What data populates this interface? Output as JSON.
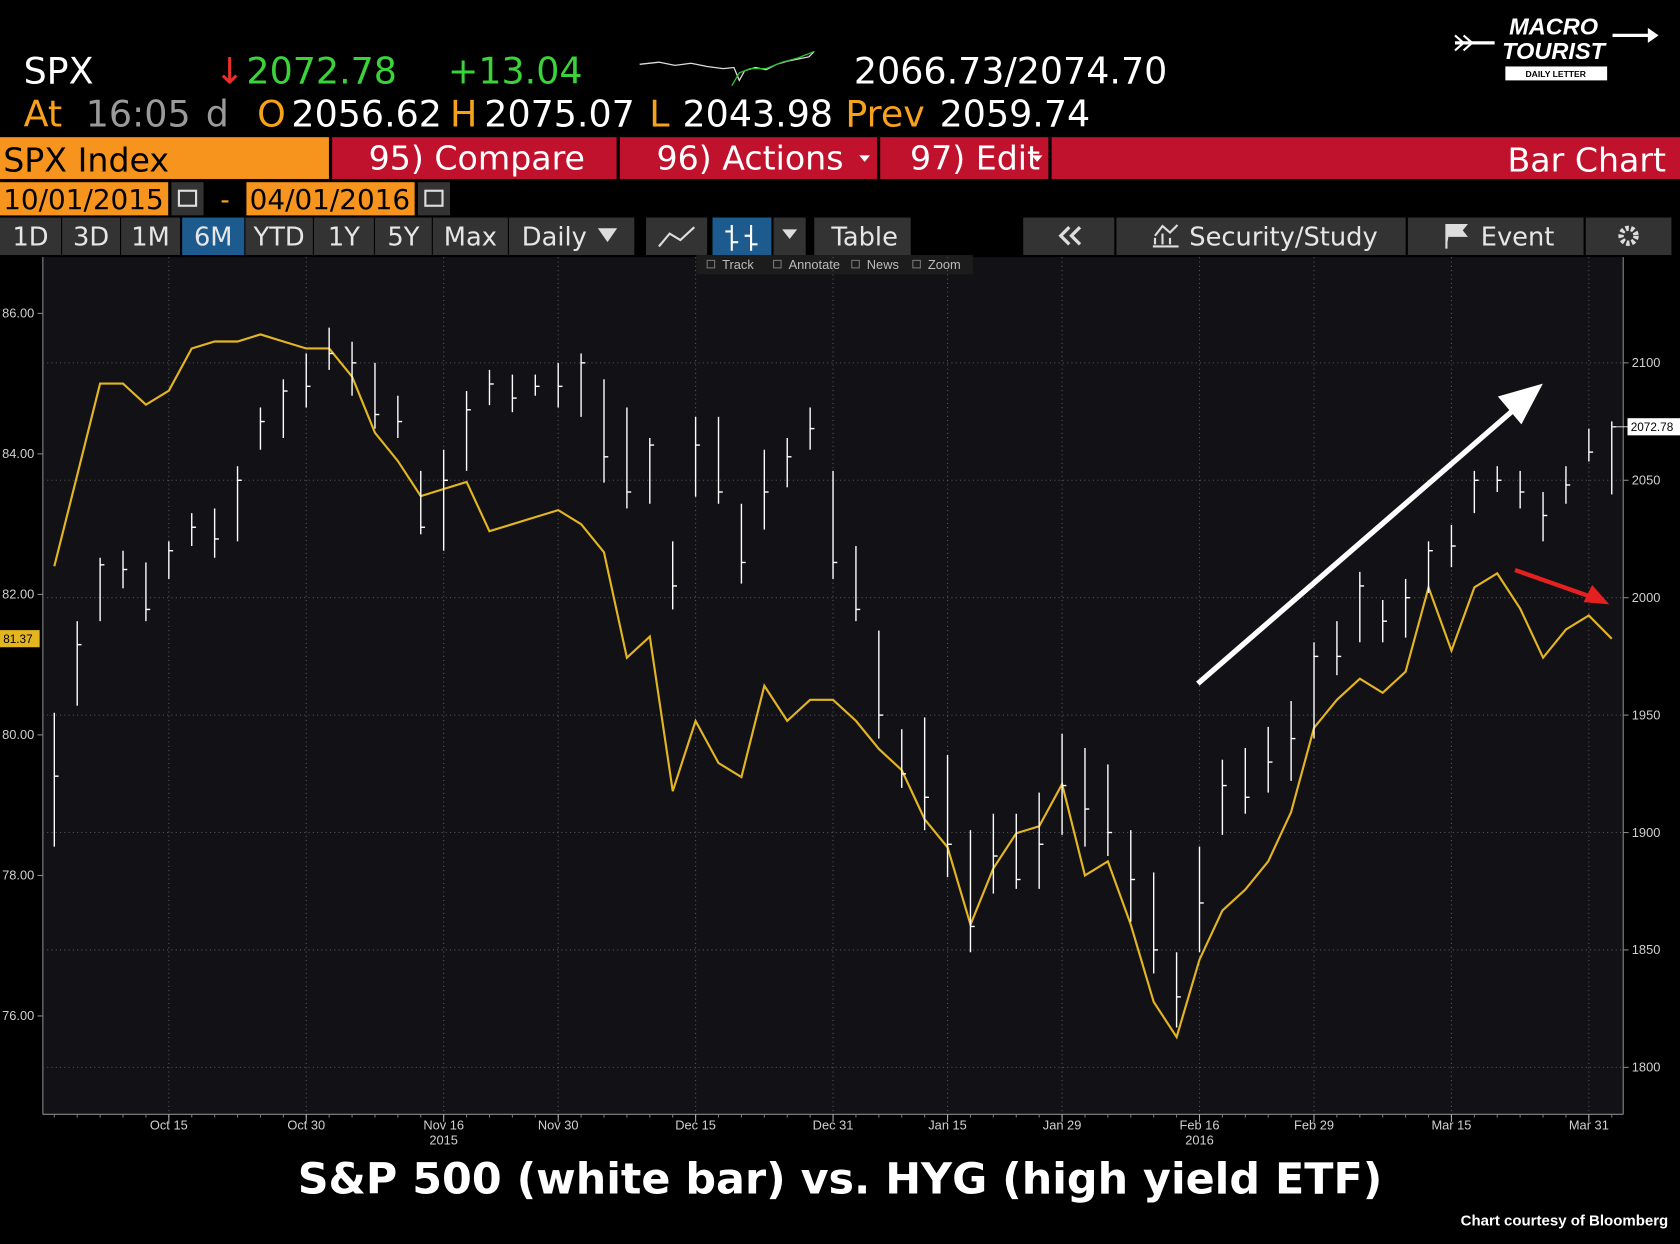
{
  "header": {
    "ticker": "SPX",
    "direction": "↓",
    "change": "+13.04",
    "bid_ask": "2066.73/2074.70",
    "at_label": "At",
    "time": "16:05",
    "flag": "d",
    "open_label": "O",
    "open": "2056.62",
    "high_label": "H",
    "low_label": "L",
    "prev_label": "Prev",
    "prev": "2059.74"
  },
  "logo": {
    "line1": "MACRO",
    "line2": "TOURIST",
    "line3": "DAILY LETTER"
  },
  "menu": {
    "security": "SPX Index",
    "compare": "95) Compare",
    "actions": "96) Actions",
    "edit": "97) Edit",
    "chart_type": "Bar Chart"
  },
  "dates": {
    "start": "10/01/2015",
    "separator": "-",
    "end": "04/01/2016"
  },
  "toolbar": {
    "ranges": [
      "1D",
      "3D",
      "1M",
      "6M",
      "YTD",
      "1Y",
      "5Y",
      "Max"
    ],
    "active_range": "6M",
    "frequency": "Daily",
    "table": "Table",
    "security_study": "Security/Study",
    "event": "Event"
  },
  "chart_tools": [
    "Track",
    "Annotate",
    "News",
    "Zoom"
  ],
  "caption": "S&P 500 (white bar) vs. HYG (high yield ETF)",
  "credit": "Chart courtesy of Bloomberg",
  "chart_data": {
    "type": "ohlc",
    "grid": true,
    "categories": [
      null,
      null,
      null,
      null,
      null,
      "Oct 15",
      null,
      null,
      null,
      null,
      null,
      "Oct 30",
      null,
      null,
      null,
      null,
      null,
      "Nov 16",
      null,
      null,
      null,
      null,
      "Nov 30",
      null,
      null,
      null,
      null,
      null,
      "Dec 15",
      null,
      null,
      null,
      null,
      null,
      "Dec 31",
      null,
      null,
      null,
      null,
      "Jan 15",
      null,
      null,
      null,
      null,
      "Jan 29",
      null,
      null,
      null,
      null,
      null,
      "Feb 16",
      null,
      null,
      null,
      null,
      "Feb 29",
      null,
      null,
      null,
      null,
      null,
      "Mar 15",
      null,
      null,
      null,
      null,
      null,
      "Mar 31",
      null
    ],
    "x_sublabels": [
      null,
      null,
      null,
      null,
      null,
      null,
      null,
      null,
      null,
      null,
      null,
      null,
      null,
      null,
      null,
      null,
      null,
      "2015",
      null,
      null,
      null,
      null,
      null,
      null,
      null,
      null,
      null,
      null,
      null,
      null,
      null,
      null,
      null,
      null,
      null,
      null,
      null,
      null,
      null,
      null,
      null,
      null,
      null,
      null,
      null,
      null,
      null,
      null,
      null,
      null,
      "2016",
      null,
      null,
      null,
      null,
      null,
      null,
      null,
      null,
      null,
      null,
      null,
      null,
      null,
      null,
      null,
      null,
      null,
      null
    ],
    "ylim": [
      74.6,
      86.8
    ],
    "yticks": [
      {
        "value": 76,
        "label": "76.00"
      },
      {
        "value": 78,
        "label": "78.00"
      },
      {
        "value": 80,
        "label": "80.00"
      },
      {
        "value": 82,
        "label": "82.00"
      },
      {
        "value": 84,
        "label": "84.00"
      },
      {
        "value": 86,
        "label": "86.00"
      }
    ],
    "y2lim": [
      1780,
      2145
    ],
    "y2ticks": [
      1800,
      1850,
      1900,
      1950,
      2000,
      2050,
      2100
    ],
    "series": [
      {
        "type": "line",
        "color": "#e3b520",
        "values": [
          82.4,
          83.7,
          85.0,
          85.0,
          84.7,
          84.9,
          85.5,
          85.6,
          85.6,
          85.7,
          85.6,
          85.5,
          85.5,
          85.1,
          84.3,
          83.9,
          83.4,
          83.5,
          83.6,
          82.9,
          83.0,
          83.1,
          83.2,
          83.0,
          82.6,
          81.1,
          81.4,
          79.2,
          80.2,
          79.6,
          79.4,
          80.7,
          80.2,
          80.5,
          80.5,
          80.2,
          79.8,
          79.5,
          78.8,
          78.4,
          77.3,
          78.1,
          78.6,
          78.7,
          79.3,
          78.0,
          78.2,
          77.3,
          76.2,
          75.7,
          76.8,
          77.5,
          77.8,
          78.2,
          78.9,
          80.1,
          80.5,
          80.8,
          80.6,
          80.9,
          82.1,
          81.2,
          82.1,
          82.3,
          81.8,
          81.1,
          81.5,
          81.7,
          81.37
        ]
      },
      {
        "type": "ohlc",
        "axis": "y2",
        "color": "#ffffff",
        "high": [
          1951,
          1990,
          2017,
          2020,
          2015,
          2024,
          2036,
          2038,
          2056,
          2081,
          2093,
          2104,
          2115,
          2109,
          2100,
          2086,
          2054,
          2063,
          2088,
          2097,
          2095,
          2095,
          2100,
          2104,
          2093,
          2081,
          2068,
          2024,
          2077,
          2077,
          2040,
          2063,
          2068,
          2081,
          2054,
          2022,
          1986,
          1944,
          1949,
          1933,
          1901,
          1908,
          1908,
          1917,
          1942,
          1936,
          1929,
          1901,
          1883,
          1849,
          1894,
          1931,
          1936,
          1945,
          1956,
          1981,
          1990,
          2011,
          1999,
          2008,
          2024,
          2031,
          2054,
          2056,
          2054,
          2045,
          2056,
          2072,
          2075.07
        ],
        "low": [
          1894,
          1954,
          1990,
          2004,
          1990,
          2008,
          2022,
          2017,
          2024,
          2063,
          2068,
          2081,
          2097,
          2086,
          2072,
          2068,
          2027,
          2020,
          2054,
          2082,
          2079,
          2086,
          2081,
          2077,
          2049,
          2038,
          2040,
          1995,
          2043,
          2040,
          2006,
          2029,
          2047,
          2063,
          2008,
          1990,
          1940,
          1919,
          1901,
          1881,
          1849,
          1874,
          1876,
          1876,
          1899,
          1894,
          1890,
          1862,
          1840,
          1817,
          1849,
          1899,
          1908,
          1917,
          1922,
          1940,
          1967,
          1981,
          1981,
          1983,
          2002,
          2013,
          2036,
          2045,
          2038,
          2024,
          2040,
          2058,
          2043.98
        ],
        "close": [
          1924,
          1980,
          2014,
          2012,
          1995,
          2020,
          2030,
          2025,
          2050,
          2075,
          2088,
          2090,
          2104,
          2100,
          2078,
          2075,
          2030,
          2050,
          2080,
          2091,
          2085,
          2090,
          2090,
          2100,
          2060,
          2045,
          2065,
          2005,
          2065,
          2045,
          2015,
          2045,
          2060,
          2072,
          2015,
          1995,
          1950,
          1925,
          1915,
          1895,
          1860,
          1890,
          1880,
          1895,
          1920,
          1910,
          1900,
          1880,
          1850,
          1830,
          1870,
          1920,
          1915,
          1930,
          1940,
          1975,
          1975,
          2005,
          1990,
          2000,
          2020,
          2022,
          2050,
          2050,
          2045,
          2035,
          2048,
          2062,
          2072.78
        ]
      }
    ]
  }
}
